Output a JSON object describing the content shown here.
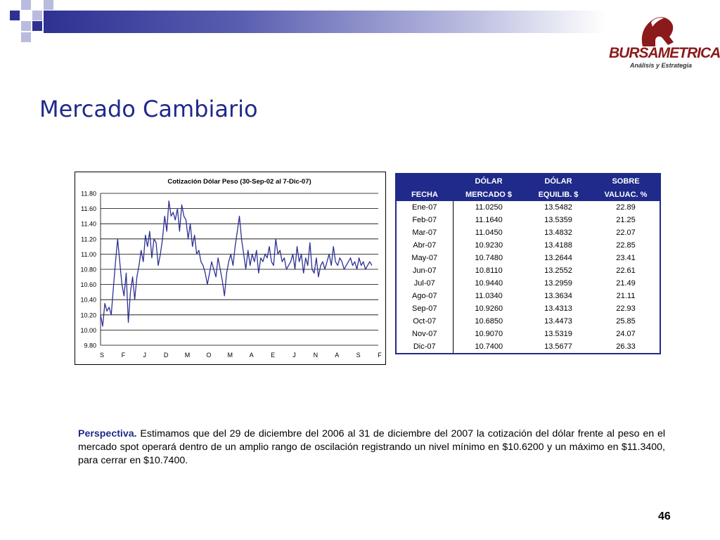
{
  "colors": {
    "accent": "#1f2a8a",
    "series": "#2e3192",
    "logo": "#8b1a1a"
  },
  "header": {
    "logo_name": "BURSAMETRICA",
    "logo_tagline": "Análisis y Estrategia"
  },
  "slide": {
    "title": "Mercado Cambiario",
    "page_number": "46"
  },
  "chart_data": {
    "type": "line",
    "title": "Cotización Dólar Peso (30-Sep-02 al 7-Dic-07)",
    "xlabel": "",
    "ylabel": "",
    "ylim": [
      9.8,
      11.8
    ],
    "yticks": [
      "11.80",
      "11.60",
      "11.40",
      "11.20",
      "11.00",
      "10.80",
      "10.60",
      "10.40",
      "10.20",
      "10.00",
      "9.80"
    ],
    "xticks": [
      "S",
      "F",
      "J",
      "D",
      "M",
      "O",
      "M",
      "A",
      "E",
      "J",
      "N",
      "A",
      "S",
      "F"
    ],
    "grid": true,
    "series": [
      {
        "name": "",
        "x_index": [
          0,
          0.1,
          0.2,
          0.3,
          0.4,
          0.5,
          0.6,
          0.7,
          0.8,
          0.9,
          1.0,
          1.1,
          1.2,
          1.3,
          1.4,
          1.5,
          1.6,
          1.7,
          1.8,
          1.9,
          2.0,
          2.1,
          2.2,
          2.3,
          2.4,
          2.5,
          2.6,
          2.7,
          2.8,
          2.9,
          3.0,
          3.1,
          3.2,
          3.3,
          3.4,
          3.5,
          3.6,
          3.7,
          3.8,
          3.9,
          4.0,
          4.1,
          4.2,
          4.3,
          4.4,
          4.5,
          4.6,
          4.7,
          4.8,
          4.9,
          5.0,
          5.1,
          5.2,
          5.3,
          5.4,
          5.5,
          5.6,
          5.7,
          5.8,
          5.9,
          6.0,
          6.1,
          6.2,
          6.3,
          6.4,
          6.5,
          6.6,
          6.7,
          6.8,
          6.9,
          7.0,
          7.1,
          7.2,
          7.3,
          7.4,
          7.5,
          7.6,
          7.7,
          7.8,
          7.9,
          8.0,
          8.1,
          8.2,
          8.3,
          8.4,
          8.5,
          8.6,
          8.7,
          8.8,
          8.9,
          9.0,
          9.1,
          9.2,
          9.3,
          9.4,
          9.5,
          9.6,
          9.7,
          9.8,
          9.9,
          10.0,
          10.1,
          10.2,
          10.3,
          10.4,
          10.5,
          10.6,
          10.7,
          10.8,
          10.9,
          11.0,
          11.1,
          11.2,
          11.3,
          11.4,
          11.5,
          11.6,
          11.7,
          11.8,
          11.9,
          12.0,
          12.1,
          12.2,
          12.3,
          12.4,
          12.5,
          12.6,
          12.7
        ],
        "values": [
          10.2,
          10.05,
          10.35,
          10.25,
          10.3,
          10.2,
          10.55,
          10.9,
          11.2,
          10.9,
          10.6,
          10.45,
          10.75,
          10.1,
          10.5,
          10.7,
          10.4,
          10.7,
          10.85,
          11.05,
          10.9,
          11.25,
          11.1,
          11.3,
          10.95,
          11.2,
          11.15,
          10.85,
          11.0,
          11.2,
          11.5,
          11.3,
          11.7,
          11.5,
          11.55,
          11.45,
          11.6,
          11.3,
          11.65,
          11.5,
          11.45,
          11.2,
          11.4,
          11.1,
          11.25,
          11.0,
          11.05,
          10.9,
          10.85,
          10.75,
          10.6,
          10.75,
          10.9,
          10.8,
          10.7,
          10.95,
          10.8,
          10.65,
          10.45,
          10.75,
          10.9,
          11.0,
          10.85,
          11.1,
          11.3,
          11.5,
          11.2,
          11.0,
          10.8,
          11.05,
          10.85,
          11.0,
          10.9,
          11.05,
          10.75,
          10.95,
          10.9,
          11.0,
          10.95,
          11.1,
          10.9,
          10.85,
          11.2,
          11.0,
          11.05,
          10.9,
          10.95,
          10.8,
          10.85,
          10.9,
          11.0,
          10.8,
          11.1,
          10.9,
          11.0,
          10.75,
          10.95,
          10.85,
          11.15,
          10.8,
          10.75,
          10.95,
          10.7,
          10.85,
          10.9,
          10.8,
          10.9,
          11.0,
          10.85,
          11.1,
          10.9,
          10.85,
          10.95,
          10.9,
          10.8,
          10.85,
          10.9,
          10.95,
          10.85,
          10.9,
          10.8,
          10.95,
          10.85,
          10.9,
          10.8,
          10.85,
          10.9,
          10.85
        ]
      }
    ]
  },
  "table": {
    "headers": [
      [
        "",
        "DÓLAR",
        "DÓLAR",
        "SOBRE"
      ],
      [
        "FECHA",
        "MERCADO $",
        "EQUILIB. $",
        "VALUAC. %"
      ]
    ],
    "rows": [
      [
        "Ene-07",
        "11.0250",
        "13.5482",
        "22.89"
      ],
      [
        "Feb-07",
        "11.1640",
        "13.5359",
        "21.25"
      ],
      [
        "Mar-07",
        "11.0450",
        "13.4832",
        "22.07"
      ],
      [
        "Abr-07",
        "10.9230",
        "13.4188",
        "22.85"
      ],
      [
        "May-07",
        "10.7480",
        "13.2644",
        "23.41"
      ],
      [
        "Jun-07",
        "10.8110",
        "13.2552",
        "22.61"
      ],
      [
        "Jul-07",
        "10.9440",
        "13.2959",
        "21.49"
      ],
      [
        "Ago-07",
        "11.0340",
        "13.3634",
        "21.11"
      ],
      [
        "Sep-07",
        "10.9260",
        "13.4313",
        "22.93"
      ],
      [
        "Oct-07",
        "10.6850",
        "13.4473",
        "25.85"
      ],
      [
        "Nov-07",
        "10.9070",
        "13.5319",
        "24.07"
      ],
      [
        "Dic-07",
        "10.7400",
        "13.5677",
        "26.33"
      ]
    ]
  },
  "perspective": {
    "label": "Perspectiva.",
    "text": " Estimamos que del 29 de diciembre del 2006 al 31 de diciembre del 2007 la cotización del dólar frente al peso en el mercado spot operará dentro de un amplio rango de oscilación registrando un nivel mínimo en $10.6200 y un máximo en $11.3400, para cerrar en $10.7400."
  }
}
